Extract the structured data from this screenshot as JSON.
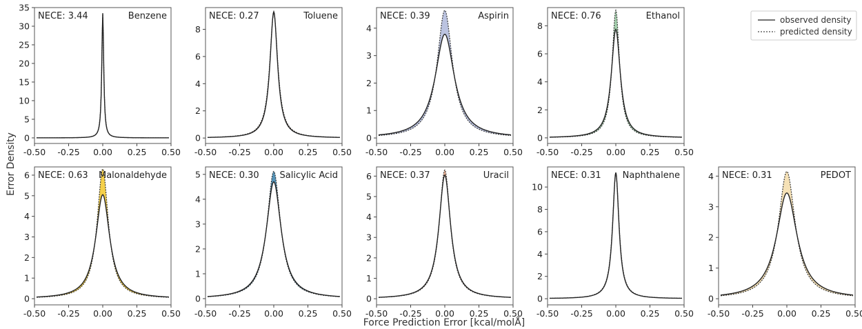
{
  "figure": {
    "xlabel": "Force Prediction Error [kcal/molÅ]",
    "ylabel": "Error Density",
    "legend": {
      "placement": "top-right",
      "observed_label": "observed density",
      "predicted_label": "predicted density"
    }
  },
  "chart_data": [
    {
      "type": "line",
      "title": "Benzene",
      "metric_text": "NECE: 3.44",
      "fill_color": "#888888",
      "xlim": [
        -0.5,
        0.5
      ],
      "ylim": [
        -1.5,
        35
      ],
      "xticks": [
        -0.5,
        -0.25,
        0,
        0.25,
        0.5
      ],
      "xtick_labels": [
        "-0.50",
        "-0.25",
        "0.00",
        "0.25",
        "0.50"
      ],
      "yticks": [
        0,
        5,
        10,
        15,
        20,
        25,
        30,
        35
      ],
      "ytick_labels": [
        "0",
        "5",
        "10",
        "15",
        "20",
        "25",
        "30",
        "35"
      ],
      "series": [
        {
          "name": "observed density",
          "peak": 33.5,
          "width": 0.0085
        },
        {
          "name": "predicted density",
          "peak": 33.2,
          "width": 0.0088
        }
      ]
    },
    {
      "type": "line",
      "title": "Toluene",
      "metric_text": "NECE: 0.27",
      "fill_color": "#e8b48a",
      "xlim": [
        -0.5,
        0.5
      ],
      "ylim": [
        -0.4,
        9.6
      ],
      "xticks": [
        -0.5,
        -0.25,
        0,
        0.25,
        0.5
      ],
      "xtick_labels": [
        "-0.50",
        "-0.25",
        "0.00",
        "0.25",
        "0.50"
      ],
      "yticks": [
        0,
        2,
        4,
        6,
        8
      ],
      "ytick_labels": [
        "0",
        "2",
        "4",
        "6",
        "8"
      ],
      "series": [
        {
          "name": "observed density",
          "peak": 9.3,
          "width": 0.034
        },
        {
          "name": "predicted density",
          "peak": 9.2,
          "width": 0.036
        }
      ]
    },
    {
      "type": "line",
      "title": "Aspirin",
      "metric_text": "NECE: 0.39",
      "fill_color": "#aab4d8",
      "xlim": [
        -0.5,
        0.5
      ],
      "ylim": [
        -0.2,
        4.75
      ],
      "xticks": [
        -0.5,
        -0.25,
        0,
        0.25,
        0.5
      ],
      "xtick_labels": [
        "-0.50",
        "-0.25",
        "0.00",
        "0.25",
        "0.50"
      ],
      "yticks": [
        0,
        1,
        2,
        3,
        4
      ],
      "ytick_labels": [
        "0",
        "1",
        "2",
        "3",
        "4"
      ],
      "series": [
        {
          "name": "observed density",
          "peak": 3.78,
          "width": 0.085
        },
        {
          "name": "predicted density",
          "peak": 4.65,
          "width": 0.068
        }
      ]
    },
    {
      "type": "line",
      "title": "Ethanol",
      "metric_text": "NECE: 0.76",
      "fill_color": "#8fc49a",
      "xlim": [
        -0.5,
        0.5
      ],
      "ylim": [
        -0.4,
        9.3
      ],
      "xticks": [
        -0.5,
        -0.25,
        0,
        0.25,
        0.5
      ],
      "xtick_labels": [
        "-0.50",
        "-0.25",
        "0.00",
        "0.25",
        "0.50"
      ],
      "yticks": [
        0,
        2,
        4,
        6,
        8
      ],
      "ytick_labels": [
        "0",
        "2",
        "4",
        "6",
        "8"
      ],
      "series": [
        {
          "name": "observed density",
          "peak": 7.75,
          "width": 0.04
        },
        {
          "name": "predicted density",
          "peak": 9.1,
          "width": 0.033
        }
      ]
    },
    {
      "type": "line",
      "title": "Malonaldehyde",
      "metric_text": "NECE: 0.63",
      "fill_color": "#f2c41d",
      "xlim": [
        -0.5,
        0.5
      ],
      "ylim": [
        -0.3,
        6.4
      ],
      "xticks": [
        -0.5,
        -0.25,
        0,
        0.25,
        0.5
      ],
      "xtick_labels": [
        "-0.50",
        "-0.25",
        "0.00",
        "0.25",
        "0.50"
      ],
      "yticks": [
        0,
        1,
        2,
        3,
        4,
        5,
        6
      ],
      "ytick_labels": [
        "0",
        "1",
        "2",
        "3",
        "4",
        "5",
        "6"
      ],
      "series": [
        {
          "name": "observed density",
          "peak": 5.05,
          "width": 0.062
        },
        {
          "name": "predicted density",
          "peak": 6.3,
          "width": 0.05
        }
      ]
    },
    {
      "type": "line",
      "title": "Salicylic Acid",
      "metric_text": "NECE: 0.30",
      "fill_color": "#2b78a6",
      "xlim": [
        -0.5,
        0.5
      ],
      "ylim": [
        -0.25,
        5.3
      ],
      "xticks": [
        -0.5,
        -0.25,
        0,
        0.25,
        0.5
      ],
      "xtick_labels": [
        "-0.50",
        "-0.25",
        "0.00",
        "0.25",
        "0.50"
      ],
      "yticks": [
        0,
        1,
        2,
        3,
        4,
        5
      ],
      "ytick_labels": [
        "0",
        "1",
        "2",
        "3",
        "4",
        "5"
      ],
      "series": [
        {
          "name": "observed density",
          "peak": 4.7,
          "width": 0.066
        },
        {
          "name": "predicted density",
          "peak": 5.12,
          "width": 0.06
        }
      ]
    },
    {
      "type": "line",
      "title": "Uracil",
      "metric_text": "NECE: 0.37",
      "fill_color": "#eba07a",
      "xlim": [
        -0.5,
        0.5
      ],
      "ylim": [
        -0.3,
        6.45
      ],
      "xticks": [
        -0.5,
        -0.25,
        0,
        0.25,
        0.5
      ],
      "xtick_labels": [
        "-0.50",
        "-0.25",
        "0.00",
        "0.25",
        "0.50"
      ],
      "yticks": [
        0,
        1,
        2,
        3,
        4,
        5,
        6
      ],
      "ytick_labels": [
        "0",
        "1",
        "2",
        "3",
        "4",
        "5",
        "6"
      ],
      "series": [
        {
          "name": "observed density",
          "peak": 6.05,
          "width": 0.052
        },
        {
          "name": "predicted density",
          "peak": 6.3,
          "width": 0.049
        }
      ]
    },
    {
      "type": "line",
      "title": "Naphthalene",
      "metric_text": "NECE: 0.31",
      "fill_color": "#9cc58d",
      "xlim": [
        -0.5,
        0.5
      ],
      "ylim": [
        -0.55,
        11.8
      ],
      "xticks": [
        -0.5,
        -0.25,
        0,
        0.25,
        0.5
      ],
      "xtick_labels": [
        "-0.50",
        "-0.25",
        "0.00",
        "0.25",
        "0.50"
      ],
      "yticks": [
        0,
        2,
        4,
        6,
        8,
        10
      ],
      "ytick_labels": [
        "0",
        "2",
        "4",
        "6",
        "8",
        "10"
      ],
      "series": [
        {
          "name": "observed density",
          "peak": 11.3,
          "width": 0.028
        },
        {
          "name": "predicted density",
          "peak": 11.2,
          "width": 0.029
        }
      ]
    },
    {
      "type": "line",
      "title": "PEDOT",
      "metric_text": "NECE: 0.31",
      "fill_color": "#f3d9a4",
      "xlim": [
        -0.5,
        0.5
      ],
      "ylim": [
        -0.2,
        4.3
      ],
      "xticks": [
        -0.5,
        -0.25,
        0,
        0.25,
        0.5
      ],
      "xtick_labels": [
        "-0.50",
        "-0.25",
        "0.00",
        "0.25",
        "0.50"
      ],
      "yticks": [
        0,
        1,
        2,
        3,
        4
      ],
      "ytick_labels": [
        "0",
        "1",
        "2",
        "3",
        "4"
      ],
      "series": [
        {
          "name": "observed density",
          "peak": 3.45,
          "width": 0.092
        },
        {
          "name": "predicted density",
          "peak": 4.15,
          "width": 0.075
        }
      ]
    }
  ]
}
